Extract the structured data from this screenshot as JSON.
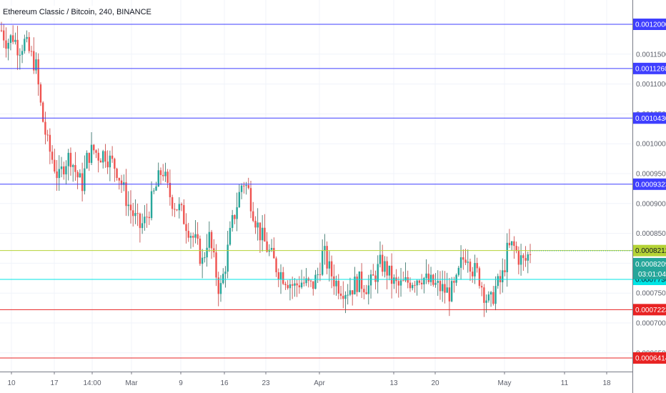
{
  "chart_data": {
    "type": "candlestick",
    "title": "Ethereum Classic / Bitcoin, 240, BINANCE",
    "y_axis": {
      "ticks": [
        "0.0012000",
        "0.0011500",
        "0.0011000",
        "0.0010500",
        "0.0010000",
        "0.0009500",
        "0.0009000",
        "0.0008500",
        "0.0008000",
        "0.0007500",
        "0.0007000",
        "0.0006500"
      ]
    },
    "x_axis": {
      "ticks": [
        "10",
        "17",
        "14:00",
        "Mar",
        "9",
        "16",
        "23",
        "Apr",
        "13",
        "20",
        "May",
        "11",
        "18"
      ]
    },
    "horizontal_levels": [
      {
        "label": "0.0012000",
        "value": 0.0012,
        "color": "#3f3fff"
      },
      {
        "label": "0.0011260",
        "value": 0.001126,
        "color": "#3f3fff"
      },
      {
        "label": "0.0010430",
        "value": 0.001043,
        "color": "#3f3fff"
      },
      {
        "label": "0.0009323",
        "value": 0.0009323,
        "color": "#3f3fff"
      },
      {
        "label": "0.0008212",
        "value": 0.0008212,
        "color": "#b5d336"
      },
      {
        "label": "0.0007730",
        "value": 0.000773,
        "color": "#00e5e5"
      },
      {
        "label": "0.0007223",
        "value": 0.0007223,
        "color": "#e82323"
      },
      {
        "label": "0.0006414",
        "value": 0.0006414,
        "color": "#e82323"
      }
    ],
    "last_price": {
      "value": "0.0008209",
      "countdown": "03:01:04",
      "color": "#26a69a"
    },
    "path": [
      0.00119,
      0.00117,
      0.00118,
      0.00116,
      0.00117,
      0.00115,
      0.00113,
      0.00105,
      0.001,
      0.00097,
      0.00094,
      0.00097,
      0.00098,
      0.00095,
      0.00093,
      0.00098,
      0.00099,
      0.00098,
      0.000985,
      0.00097,
      0.00096,
      0.00093,
      0.0009,
      0.00088,
      0.00086,
      0.00087,
      0.0009,
      0.00093,
      0.00096,
      0.00092,
      0.0009,
      0.00089,
      0.00087,
      0.00085,
      0.00083,
      0.0008,
      0.00085,
      0.0008,
      0.00075,
      0.0008,
      0.00086,
      0.0009,
      0.00094,
      0.00092,
      0.00088,
      0.00085,
      0.00083,
      0.00081,
      0.00079,
      0.00078,
      0.00077,
      0.00076,
      0.00077,
      0.000765,
      0.00076,
      0.00078,
      0.00082,
      0.00079,
      0.00077,
      0.00076,
      0.000755,
      0.00076,
      0.00077,
      0.000765,
      0.00076,
      0.00078,
      0.0008,
      0.00079,
      0.00077,
      0.00076,
      0.000765,
      0.00077,
      0.000775,
      0.00078,
      0.00077,
      0.000765,
      0.00076,
      0.000755,
      0.00075,
      0.00076,
      0.0008,
      0.00082,
      0.00079,
      0.00078,
      0.00075,
      0.00073,
      0.00076,
      0.00077,
      0.00082,
      0.00083,
      0.00081,
      0.0008,
      0.0008209
    ]
  }
}
